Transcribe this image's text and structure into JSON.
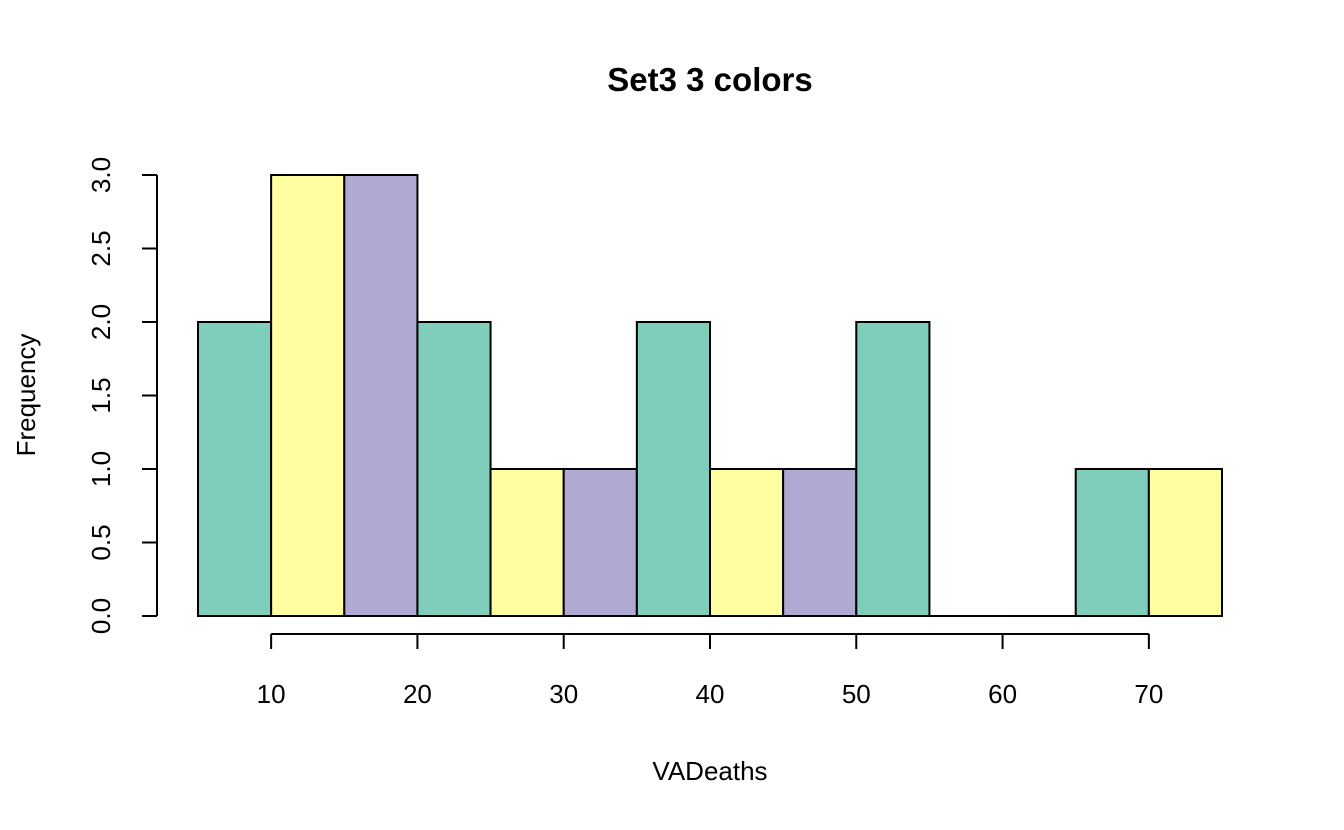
{
  "chart_data": {
    "type": "bar",
    "title": "Set3 3 colors",
    "xlabel": "VADeaths",
    "ylabel": "Frequency",
    "bins": [
      {
        "start": 5,
        "end": 10,
        "count": 2
      },
      {
        "start": 10,
        "end": 15,
        "count": 3
      },
      {
        "start": 15,
        "end": 20,
        "count": 3
      },
      {
        "start": 20,
        "end": 25,
        "count": 2
      },
      {
        "start": 25,
        "end": 30,
        "count": 1
      },
      {
        "start": 30,
        "end": 35,
        "count": 1
      },
      {
        "start": 35,
        "end": 40,
        "count": 2
      },
      {
        "start": 40,
        "end": 45,
        "count": 1
      },
      {
        "start": 45,
        "end": 50,
        "count": 1
      },
      {
        "start": 50,
        "end": 55,
        "count": 2
      },
      {
        "start": 55,
        "end": 60,
        "count": 0
      },
      {
        "start": 60,
        "end": 65,
        "count": 0
      },
      {
        "start": 65,
        "end": 70,
        "count": 1
      },
      {
        "start": 70,
        "end": 75,
        "count": 1
      }
    ],
    "colors": [
      "#7FCDBB",
      "#FFFFA1",
      "#B0AAD2"
    ],
    "x_ticks": [
      10,
      20,
      30,
      40,
      50,
      60,
      70
    ],
    "y_ticks": [
      "0.0",
      "0.5",
      "1.0",
      "1.5",
      "2.0",
      "2.5",
      "3.0"
    ],
    "xlim": [
      5,
      75
    ],
    "ylim": [
      0,
      3
    ],
    "grid": false
  }
}
